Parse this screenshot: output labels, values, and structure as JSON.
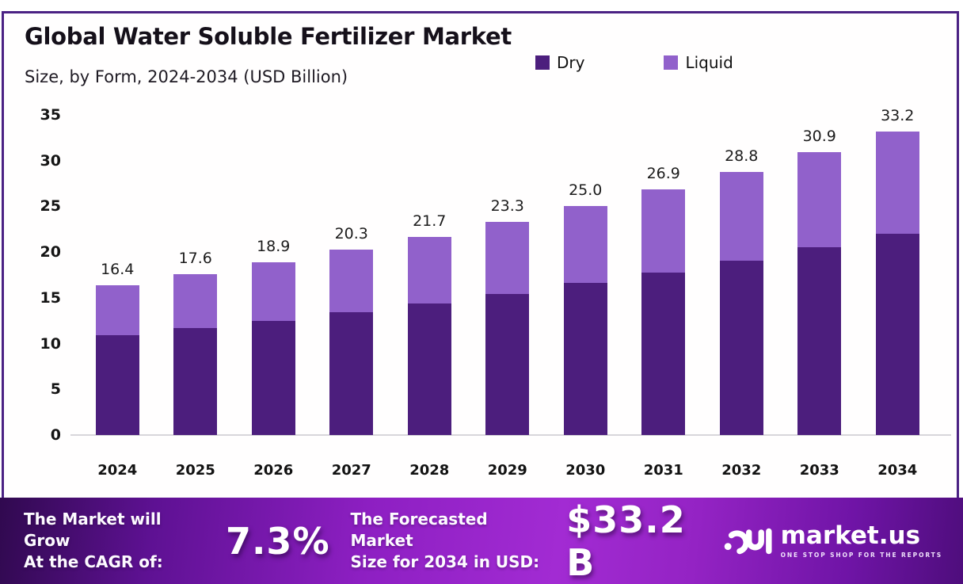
{
  "header": {
    "title": "Global Water Soluble Fertilizer Market",
    "subtitle": "Size, by Form, 2024-2034 (USD Billion)"
  },
  "chart_data": {
    "type": "bar",
    "stacked": true,
    "title": "Global Water Soluble Fertilizer Market",
    "subtitle": "Size, by Form, 2024-2034 (USD Billion)",
    "categories": [
      "2024",
      "2025",
      "2026",
      "2027",
      "2028",
      "2029",
      "2030",
      "2031",
      "2032",
      "2033",
      "2034"
    ],
    "series": [
      {
        "name": "Dry",
        "color": "#4c1e7d",
        "values": [
          10.9,
          11.7,
          12.5,
          13.4,
          14.4,
          15.4,
          16.6,
          17.8,
          19.1,
          20.5,
          22.0
        ]
      },
      {
        "name": "Liquid",
        "color": "#9161cb",
        "values": [
          5.5,
          5.9,
          6.4,
          6.9,
          7.3,
          7.9,
          8.4,
          9.1,
          9.7,
          10.4,
          11.2
        ]
      }
    ],
    "totals_labels": [
      "16.4",
      "17.6",
      "18.9",
      "20.3",
      "21.7",
      "23.3",
      "25.0",
      "26.9",
      "28.8",
      "30.9",
      "33.2"
    ],
    "ylim": [
      0,
      35
    ],
    "yticks": [
      0,
      5,
      10,
      15,
      20,
      25,
      30,
      35
    ],
    "grid": false,
    "legend_position": "top-right",
    "xlabel": "",
    "ylabel": ""
  },
  "banner": {
    "cagr_label_line1": "The Market will Grow",
    "cagr_label_line2": "At the CAGR of:",
    "cagr_value": "7.3%",
    "forecast_label_line1": "The Forecasted Market",
    "forecast_label_line2": "Size for 2034 in USD:",
    "forecast_value": "$33.2 B",
    "brand": {
      "name": "market.us",
      "tagline": "ONE STOP SHOP FOR THE REPORTS"
    }
  },
  "colors": {
    "panel_border": "#4b2284",
    "dry": "#4c1e7d",
    "liquid": "#9161cb",
    "axis_line": "#d8d6da",
    "banner_gradient_start": "#30094f",
    "banner_gradient_mid": "#a22bd3",
    "banner_gradient_end": "#4e0d7c"
  }
}
